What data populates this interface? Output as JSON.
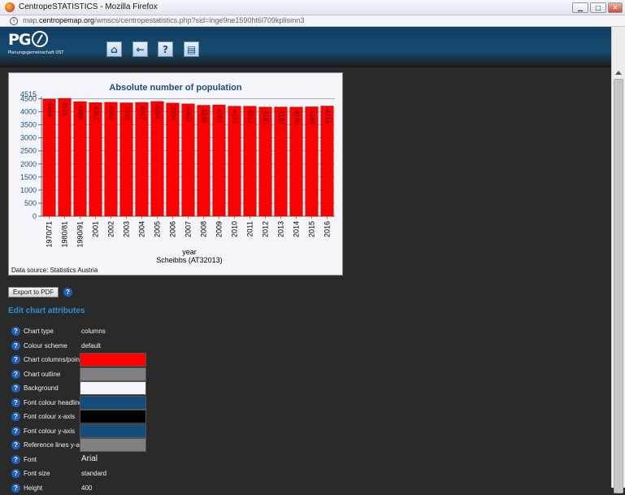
{
  "window": {
    "title": "CentropeSTATISTICS - Mozilla Firefox",
    "btn_min": "▁",
    "btn_max": "□",
    "btn_close": "✕"
  },
  "urlbar": {
    "info": "i",
    "url_prefix": "map.",
    "url_domain": "centropemap.org",
    "url_path": "/wmscs/centropestatistics.php?sid=inge9ne1590ht6l709kplismn3"
  },
  "header": {
    "logo_text": "PG",
    "logo_sub": "Planungsgemeinschaft OST",
    "toolbar": [
      {
        "name": "home-button",
        "icon": "home-icon",
        "glyph": "⌂"
      },
      {
        "name": "back-button",
        "icon": "arrow-left-icon",
        "glyph": "←"
      },
      {
        "name": "help-button",
        "icon": "question-icon",
        "glyph": "?"
      },
      {
        "name": "table-button",
        "icon": "table-icon",
        "glyph": "▤"
      }
    ]
  },
  "chart_data": {
    "type": "bar",
    "title": "Absolute number of population",
    "xlabel": "year",
    "xlabel2": "Scheibbs (AT32013)",
    "categories": [
      "1970/71",
      "1980/81",
      "1990/91",
      "2001",
      "2002",
      "2003",
      "2004",
      "2005",
      "2006",
      "2007",
      "2008",
      "2009",
      "2010",
      "2011",
      "2012",
      "2013",
      "2014",
      "2015",
      "2016"
    ],
    "values": [
      4484,
      4515,
      4389,
      4351,
      4362,
      4343,
      4357,
      4394,
      4334,
      4302,
      4248,
      4263,
      4213,
      4212,
      4181,
      4183,
      4180,
      4189,
      4219
    ],
    "value_labels": [
      "4484",
      "4515",
      "4389",
      "4351",
      "4362",
      "4343",
      "4357",
      "4394",
      "4334",
      "4302",
      "4248",
      "4263",
      "4213",
      "4212",
      "4181",
      "4183",
      "4180",
      "4189",
      "4219"
    ],
    "ylim": [
      0,
      4515
    ],
    "yticks": [
      0,
      500,
      1000,
      1500,
      2000,
      2500,
      3000,
      3500,
      4000,
      4500
    ],
    "ymax_label": "4515",
    "bar_color": "#ff0000",
    "outline_color": "#808080",
    "background": "#f4f5fb",
    "headline_color": "#1b4f7f",
    "xaxis_color": "#000000",
    "yaxis_color": "#1b4f7f",
    "grid": true
  },
  "datasource": "Data source: Statistics Austria",
  "export": {
    "label": "Export to PDF",
    "help": "?"
  },
  "edit_title": "Edit chart attributes",
  "attributes": [
    {
      "label": "Chart type",
      "value": "columns",
      "kind": "text"
    },
    {
      "label": "Colour scheme",
      "value": "default",
      "kind": "text"
    },
    {
      "label": "Chart columns/points",
      "color": "#ff0000",
      "kind": "swatch"
    },
    {
      "label": "Chart outline",
      "color": "#808080",
      "kind": "swatch"
    },
    {
      "label": "Background",
      "color": "#f4f5fb",
      "kind": "swatch"
    },
    {
      "label": "Font colour headline",
      "color": "#134d7c",
      "kind": "swatch"
    },
    {
      "label": "Font colour x-axis",
      "color": "#000000",
      "kind": "swatch"
    },
    {
      "label": "Font colour y-axis",
      "color": "#134d7c",
      "kind": "swatch"
    },
    {
      "label": "Reference lines y-axis",
      "color": "#808080",
      "kind": "swatch"
    },
    {
      "label": "Font",
      "value": "Arial",
      "kind": "bigtext"
    },
    {
      "label": "Font size",
      "value": "standard",
      "kind": "text"
    },
    {
      "label": "Height",
      "value": "400",
      "kind": "text"
    }
  ]
}
